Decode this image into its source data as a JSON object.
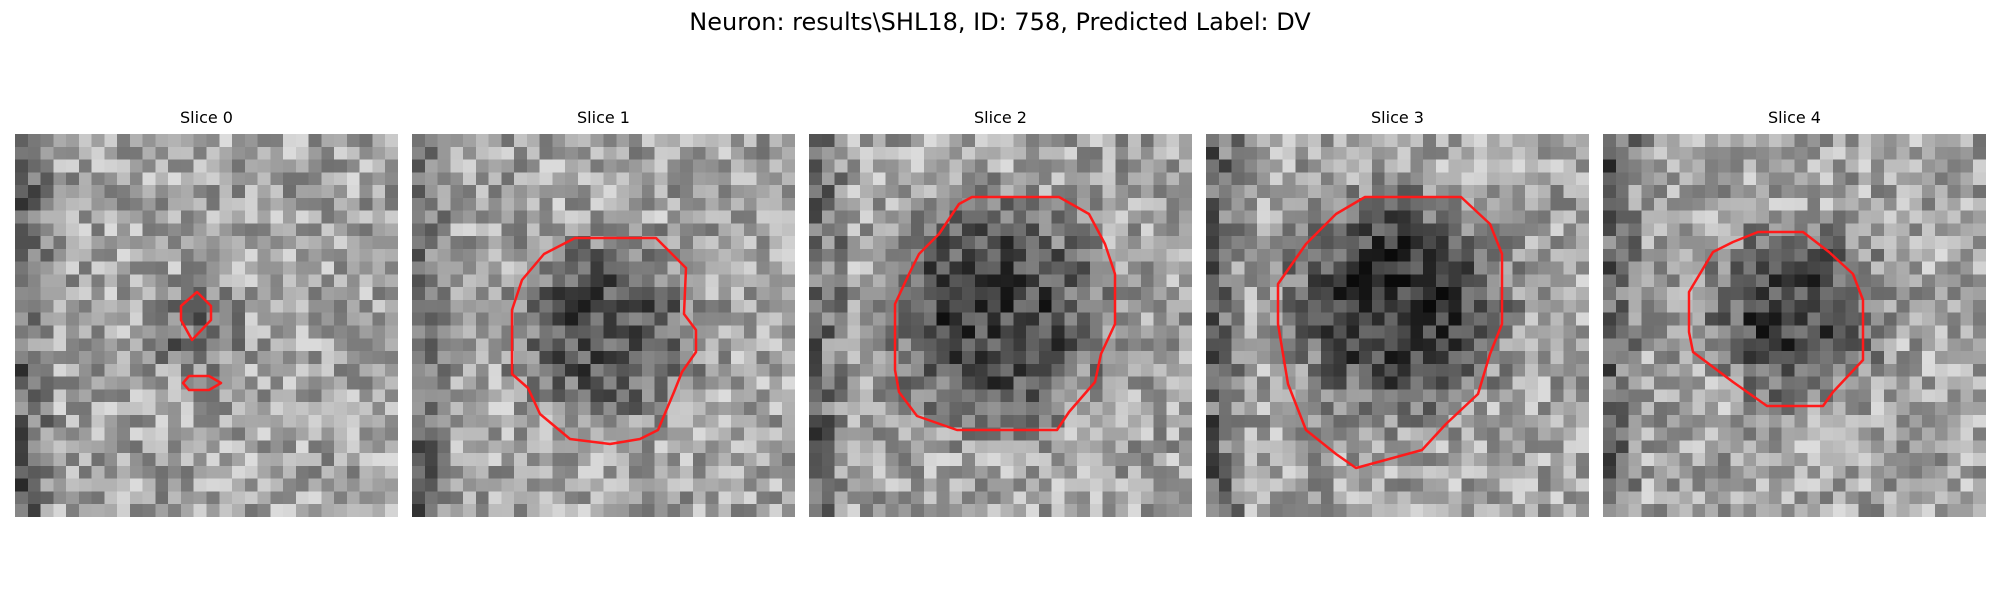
{
  "figure": {
    "title": "Neuron: results\\SHL18, ID: 758, Predicted Label: DV",
    "contour_color": "#ff1a1a"
  },
  "panels": [
    {
      "title": "Slice 0",
      "blob_intensity": 0.35,
      "blob_radius_fraction": 0.12
    },
    {
      "title": "Slice 1",
      "blob_intensity": 0.55,
      "blob_radius_fraction": 0.25
    },
    {
      "title": "Slice 2",
      "blob_intensity": 0.65,
      "blob_radius_fraction": 0.3
    },
    {
      "title": "Slice 3",
      "blob_intensity": 0.75,
      "blob_radius_fraction": 0.29
    },
    {
      "title": "Slice 4",
      "blob_intensity": 0.65,
      "blob_radius_fraction": 0.23
    }
  ]
}
